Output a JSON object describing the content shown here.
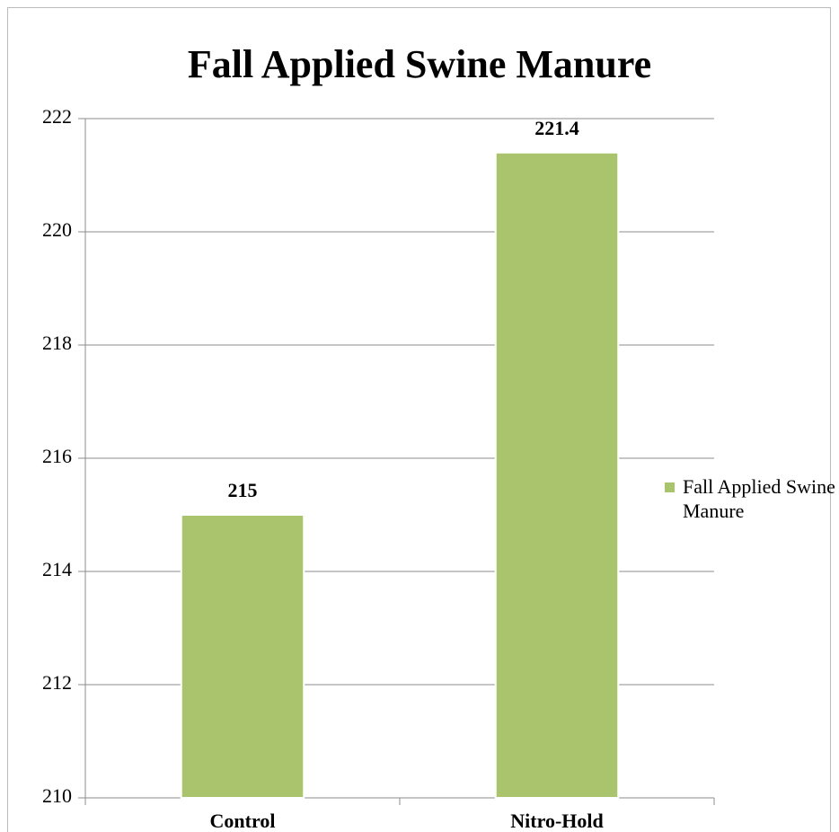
{
  "chart_data": {
    "type": "bar",
    "title": "Fall Applied Swine Manure",
    "categories": [
      "Control",
      "Nitro-Hold"
    ],
    "series": [
      {
        "name": "Fall Applied Swine Manure",
        "color": "#a9c46c",
        "values": [
          215,
          221.4
        ]
      }
    ],
    "ylim": [
      210,
      222
    ],
    "yticks": [
      210,
      212,
      214,
      216,
      218,
      220,
      222
    ],
    "grid": true,
    "legend": "right",
    "data_labels": true
  }
}
